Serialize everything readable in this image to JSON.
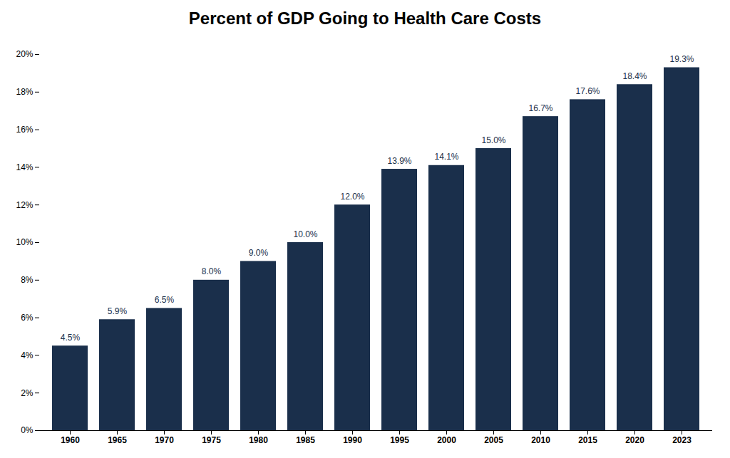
{
  "chart_data": {
    "type": "bar",
    "title": "Percent of GDP Going to Health Care Costs",
    "categories": [
      "1960",
      "1965",
      "1970",
      "1975",
      "1980",
      "1985",
      "1990",
      "1995",
      "2000",
      "2005",
      "2010",
      "2015",
      "2020",
      "2023"
    ],
    "values": [
      4.5,
      5.9,
      6.5,
      8.0,
      9.0,
      10.0,
      12.0,
      13.9,
      14.1,
      15.0,
      16.7,
      17.6,
      18.4,
      19.3
    ],
    "value_labels": [
      "4.5%",
      "5.9%",
      "6.5%",
      "8.0%",
      "9.0%",
      "10.0%",
      "12.0%",
      "13.9%",
      "14.1%",
      "15.0%",
      "16.7%",
      "17.6%",
      "18.4%",
      "19.3%"
    ],
    "color": "#1a2f4b",
    "ylim": [
      0,
      20
    ],
    "yticks": [
      {
        "value": 0,
        "label": "0%"
      },
      {
        "value": 2,
        "label": "2%"
      },
      {
        "value": 4,
        "label": "4%"
      },
      {
        "value": 6,
        "label": "6%"
      },
      {
        "value": 8,
        "label": "8%"
      },
      {
        "value": 10,
        "label": "10%"
      },
      {
        "value": 12,
        "label": "12%"
      },
      {
        "value": 14,
        "label": "14%"
      },
      {
        "value": 16,
        "label": "16%"
      },
      {
        "value": 18,
        "label": "18%"
      },
      {
        "value": 20,
        "label": "20%"
      }
    ],
    "grid": false,
    "data_labels": true
  }
}
